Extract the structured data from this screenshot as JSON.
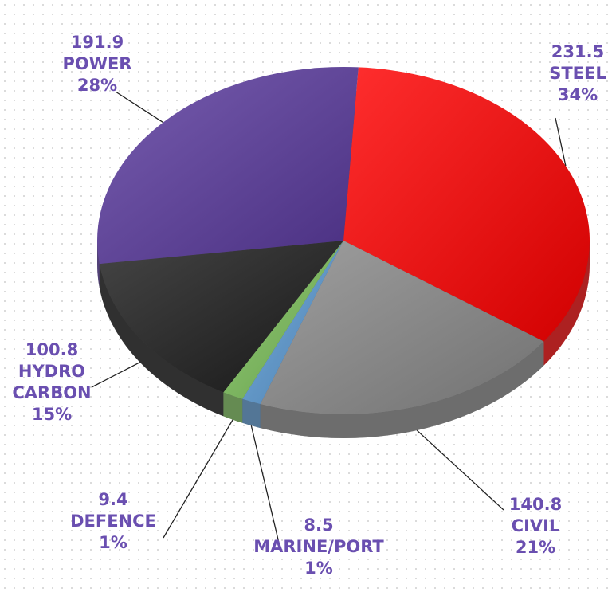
{
  "chart_data": {
    "type": "pie",
    "categories": [
      "STEEL",
      "CIVIL",
      "MARINE/PORT",
      "DEFENCE",
      "HYDRO CARBON",
      "POWER"
    ],
    "values": [
      231.5,
      140.8,
      8.5,
      9.4,
      100.8,
      191.9
    ],
    "percent_labels": [
      "34%",
      "21%",
      "1%",
      "1%",
      "15%",
      "28%"
    ],
    "colors": [
      "#ff0000",
      "#8a8a8a",
      "#5b9bd5",
      "#7cc15a",
      "#1c1c1c",
      "#5a3a9e"
    ]
  }
}
